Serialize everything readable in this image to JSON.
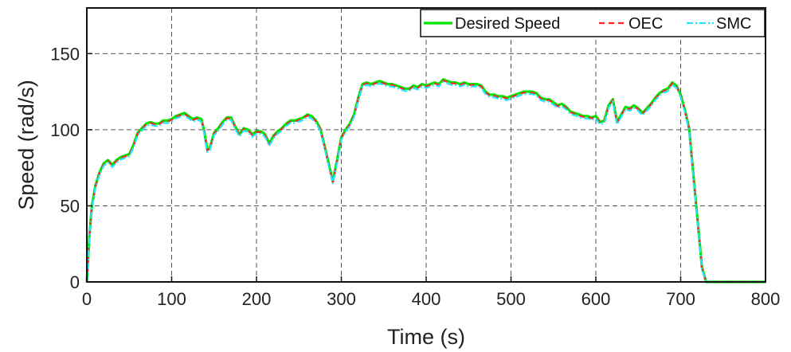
{
  "chart_data": {
    "type": "line",
    "xlabel": "Time (s)",
    "ylabel": "Speed (rad/s)",
    "xlim": [
      0,
      800
    ],
    "ylim": [
      0,
      180
    ],
    "xticks": [
      "0",
      "100",
      "200",
      "300",
      "400",
      "500",
      "600",
      "700",
      "800"
    ],
    "yticks": [
      "0",
      "50",
      "100",
      "150"
    ],
    "grid": true,
    "legend_position": "top-right",
    "series": [
      {
        "name": "Desired Speed",
        "color": "#00e600",
        "style": "solid",
        "x": [
          0,
          3,
          6,
          10,
          15,
          20,
          25,
          30,
          35,
          40,
          45,
          50,
          55,
          60,
          65,
          70,
          75,
          80,
          85,
          90,
          95,
          100,
          105,
          110,
          115,
          120,
          125,
          130,
          135,
          138,
          142,
          145,
          150,
          155,
          160,
          165,
          170,
          175,
          180,
          185,
          190,
          195,
          200,
          205,
          210,
          215,
          220,
          225,
          230,
          235,
          240,
          245,
          250,
          255,
          260,
          265,
          270,
          275,
          280,
          285,
          290,
          295,
          300,
          305,
          310,
          315,
          320,
          325,
          330,
          335,
          340,
          345,
          350,
          355,
          360,
          365,
          370,
          375,
          380,
          385,
          390,
          395,
          400,
          405,
          410,
          415,
          420,
          425,
          430,
          435,
          440,
          445,
          450,
          455,
          460,
          465,
          470,
          475,
          480,
          485,
          490,
          495,
          500,
          505,
          510,
          515,
          520,
          525,
          530,
          535,
          540,
          545,
          550,
          555,
          560,
          565,
          570,
          575,
          580,
          585,
          590,
          595,
          600,
          605,
          610,
          615,
          620,
          625,
          630,
          635,
          640,
          645,
          650,
          655,
          660,
          665,
          670,
          675,
          680,
          685,
          690,
          695,
          700,
          705,
          710,
          715,
          720,
          725,
          730,
          735,
          740,
          745,
          750,
          755,
          760,
          765,
          770,
          780,
          790,
          800
        ],
        "y": [
          0,
          30,
          50,
          63,
          72,
          78,
          80,
          77,
          80,
          82,
          83,
          84,
          90,
          98,
          101,
          104,
          105,
          104,
          104,
          106,
          106,
          107,
          109,
          110,
          111,
          109,
          107,
          108,
          107,
          100,
          87,
          88,
          98,
          101,
          105,
          108,
          108,
          102,
          97,
          101,
          100,
          97,
          99,
          99,
          97,
          91,
          96,
          99,
          101,
          104,
          106,
          106,
          107,
          108,
          110,
          109,
          106,
          101,
          90,
          78,
          66,
          80,
          95,
          100,
          104,
          110,
          121,
          130,
          131,
          130,
          131,
          132,
          131,
          130,
          130,
          129,
          128,
          127,
          127,
          129,
          128,
          130,
          129,
          130,
          131,
          130,
          133,
          132,
          131,
          131,
          130,
          131,
          130,
          130,
          130,
          129,
          125,
          123,
          123,
          122,
          122,
          121,
          122,
          123,
          124,
          125,
          125,
          125,
          124,
          121,
          120,
          120,
          118,
          116,
          117,
          115,
          112,
          111,
          110,
          109,
          109,
          108,
          109,
          105,
          106,
          116,
          120,
          105,
          110,
          115,
          114,
          116,
          114,
          111,
          114,
          117,
          121,
          124,
          126,
          127,
          131,
          129,
          123,
          113,
          101,
          70,
          40,
          10,
          0,
          0,
          0,
          0,
          0,
          0,
          0,
          0,
          0,
          0,
          0,
          0
        ],
        "x_full": null
      },
      {
        "name": "OEC",
        "color": "#ff2222",
        "style": "dash"
      },
      {
        "name": "SMC",
        "color": "#22e5ff",
        "style": "dashdot"
      }
    ]
  }
}
